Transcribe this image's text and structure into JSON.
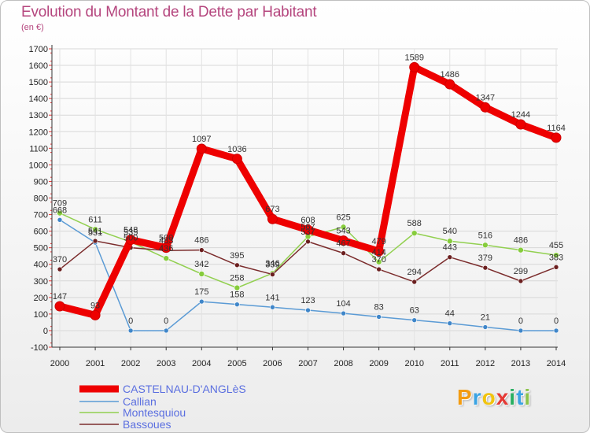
{
  "title": "Evolution du Montant de la Dette par Habitant",
  "subtitle": "(en €)",
  "brand": {
    "text": "Proxiti",
    "letters": [
      {
        "ch": "P",
        "color": "#f39c12"
      },
      {
        "ch": "r",
        "color": "#3aa3e3"
      },
      {
        "ch": "o",
        "color": "#f1c40f"
      },
      {
        "ch": "x",
        "color": "#e53935"
      },
      {
        "ch": "i",
        "color": "#27ae60"
      },
      {
        "ch": "t",
        "color": "#3aa3e3"
      },
      {
        "ch": "i",
        "color": "#8bc34a"
      }
    ]
  },
  "chart_data": {
    "type": "line",
    "title": "Evolution du Montant de la Dette par Habitant",
    "ylabel": "(en €)",
    "x": [
      2000,
      2001,
      2002,
      2003,
      2004,
      2005,
      2006,
      2007,
      2008,
      2009,
      2010,
      2011,
      2012,
      2013,
      2014
    ],
    "ylim": [
      -100,
      1700
    ],
    "yticks": [
      -100,
      0,
      100,
      200,
      300,
      400,
      500,
      600,
      700,
      800,
      900,
      1000,
      1100,
      1200,
      1300,
      1400,
      1500,
      1600,
      1700
    ],
    "grid": true,
    "legend": "bottom-left",
    "series": [
      {
        "name": "CASTELNAU-D'ANGLèS",
        "color": "#ee0000",
        "values": [
          147,
          93,
          548,
          500,
          1097,
          1036,
          673,
          608,
          543,
          479,
          1589,
          1486,
          1347,
          1244,
          1164
        ]
      },
      {
        "name": "Callian",
        "color": "#5b9bd5",
        "values": [
          668,
          531,
          0,
          0,
          175,
          158,
          141,
          123,
          104,
          83,
          63,
          44,
          21,
          0,
          0
        ]
      },
      {
        "name": "Montesquiou",
        "color": "#92d050",
        "values": [
          709,
          611,
          535,
          436,
          342,
          258,
          346,
          567,
          625,
          414,
          588,
          540,
          516,
          486,
          455
        ]
      },
      {
        "name": "Bassoues",
        "color": "#7b2c2c",
        "values": [
          370,
          541,
          500,
          483,
          486,
          395,
          339,
          537,
          467,
          370,
          294,
          443,
          379,
          299,
          383
        ]
      }
    ]
  }
}
